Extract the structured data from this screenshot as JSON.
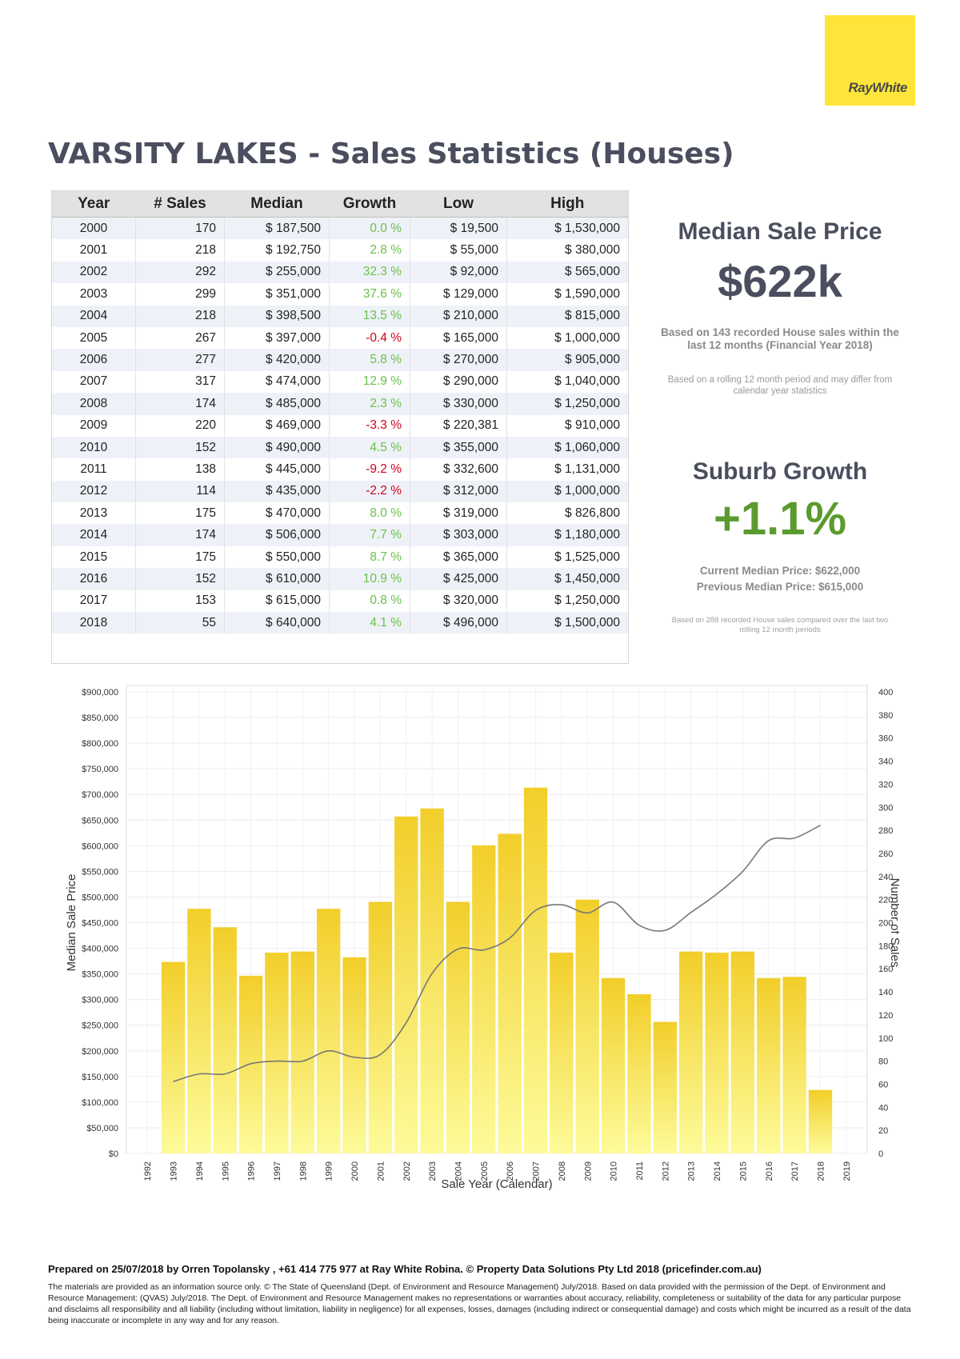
{
  "brand": {
    "name": "RayWhite",
    "color": "#ffe539"
  },
  "title": "VARSITY LAKES - Sales Statistics (Houses)",
  "table": {
    "headers": [
      "Year",
      "# Sales",
      "Median",
      "Growth",
      "Low",
      "High"
    ],
    "rows": [
      [
        "2000",
        "170",
        "$ 187,500",
        "0.0 %",
        "$ 19,500",
        "$ 1,530,000"
      ],
      [
        "2001",
        "218",
        "$ 192,750",
        "2.8 %",
        "$ 55,000",
        "$ 380,000"
      ],
      [
        "2002",
        "292",
        "$ 255,000",
        "32.3 %",
        "$ 92,000",
        "$ 565,000"
      ],
      [
        "2003",
        "299",
        "$ 351,000",
        "37.6 %",
        "$ 129,000",
        "$ 1,590,000"
      ],
      [
        "2004",
        "218",
        "$ 398,500",
        "13.5 %",
        "$ 210,000",
        "$ 815,000"
      ],
      [
        "2005",
        "267",
        "$ 397,000",
        "-0.4 %",
        "$ 165,000",
        "$ 1,000,000"
      ],
      [
        "2006",
        "277",
        "$ 420,000",
        "5.8 %",
        "$ 270,000",
        "$ 905,000"
      ],
      [
        "2007",
        "317",
        "$ 474,000",
        "12.9 %",
        "$ 290,000",
        "$ 1,040,000"
      ],
      [
        "2008",
        "174",
        "$ 485,000",
        "2.3 %",
        "$ 330,000",
        "$ 1,250,000"
      ],
      [
        "2009",
        "220",
        "$ 469,000",
        "-3.3 %",
        "$ 220,381",
        "$ 910,000"
      ],
      [
        "2010",
        "152",
        "$ 490,000",
        "4.5 %",
        "$ 355,000",
        "$ 1,060,000"
      ],
      [
        "2011",
        "138",
        "$ 445,000",
        "-9.2 %",
        "$ 332,600",
        "$ 1,131,000"
      ],
      [
        "2012",
        "114",
        "$ 435,000",
        "-2.2 %",
        "$ 312,000",
        "$ 1,000,000"
      ],
      [
        "2013",
        "175",
        "$ 470,000",
        "8.0 %",
        "$ 319,000",
        "$ 826,800"
      ],
      [
        "2014",
        "174",
        "$ 506,000",
        "7.7 %",
        "$ 303,000",
        "$ 1,180,000"
      ],
      [
        "2015",
        "175",
        "$ 550,000",
        "8.7 %",
        "$ 365,000",
        "$ 1,525,000"
      ],
      [
        "2016",
        "152",
        "$ 610,000",
        "10.9 %",
        "$ 425,000",
        "$ 1,450,000"
      ],
      [
        "2017",
        "153",
        "$ 615,000",
        "0.8 %",
        "$ 320,000",
        "$ 1,250,000"
      ],
      [
        "2018",
        "55",
        "$ 640,000",
        "4.1 %",
        "$ 496,000",
        "$ 1,500,000"
      ]
    ]
  },
  "median_panel": {
    "heading": "Median Sale Price",
    "value": "$622k",
    "note1": "Based on 143 recorded House sales within the last 12 months (Financial Year 2018)",
    "note2": "Based on a rolling 12 month period and may differ from calendar year statistics"
  },
  "growth_panel": {
    "heading": "Suburb Growth",
    "value": "+1.1%",
    "current": "Current Median Price: $622,000",
    "previous": "Previous Median Price: $615,000",
    "note": "Based on 288 recorded House sales compared over the last two rolling 12 month periods"
  },
  "chart_data": {
    "type": "bar",
    "xlabel": "Sale Year (Calendar)",
    "ylabel": "Median Sale Price",
    "y2label": "Number of Sales",
    "ylim": [
      0,
      900000
    ],
    "y2lim": [
      0,
      400
    ],
    "y_ticks": [
      "$0",
      "$50,000",
      "$100,000",
      "$150,000",
      "$200,000",
      "$250,000",
      "$300,000",
      "$350,000",
      "$400,000",
      "$450,000",
      "$500,000",
      "$550,000",
      "$600,000",
      "$650,000",
      "$700,000",
      "$750,000",
      "$800,000",
      "$850,000",
      "$900,000"
    ],
    "y2_ticks": [
      "0",
      "20",
      "40",
      "60",
      "80",
      "100",
      "120",
      "140",
      "160",
      "180",
      "200",
      "220",
      "240",
      "260",
      "280",
      "300",
      "320",
      "340",
      "360",
      "380",
      "400"
    ],
    "x_ticks": [
      "1992",
      "1993",
      "1994",
      "1995",
      "1996",
      "1997",
      "1998",
      "1999",
      "2000",
      "2001",
      "2002",
      "2003",
      "2004",
      "2005",
      "2006",
      "2007",
      "2008",
      "2009",
      "2010",
      "2011",
      "2012",
      "2013",
      "2014",
      "2015",
      "2016",
      "2017",
      "2018",
      "2019"
    ],
    "series": [
      {
        "kind": "bar",
        "x": [
          1993,
          1994,
          1995,
          1996,
          1997,
          1998,
          1999,
          2000,
          2001,
          2002,
          2003,
          2004,
          2005,
          2006,
          2007,
          2008,
          2009,
          2010,
          2011,
          2012,
          2013,
          2014,
          2015,
          2016,
          2017,
          2018
        ],
        "values": [
          166,
          212,
          196,
          154,
          174,
          175,
          212,
          170,
          218,
          292,
          299,
          218,
          267,
          277,
          317,
          174,
          220,
          152,
          138,
          114,
          175,
          174,
          175,
          152,
          153,
          55
        ]
      },
      {
        "kind": "line",
        "x": [
          1993,
          1994,
          1995,
          1996,
          1997,
          1998,
          1999,
          2000,
          2001,
          2002,
          2003,
          2004,
          2005,
          2006,
          2007,
          2008,
          2009,
          2010,
          2011,
          2012,
          2013,
          2014,
          2015,
          2016,
          2017,
          2018
        ],
        "values": [
          140000,
          155000,
          155000,
          175000,
          180000,
          180000,
          200000,
          187500,
          192750,
          255000,
          351000,
          398500,
          397000,
          420000,
          474000,
          485000,
          469000,
          490000,
          445000,
          435000,
          470000,
          506000,
          550000,
          610000,
          615000,
          640000
        ]
      }
    ],
    "colors": {
      "bar_top": "#f2ce2a",
      "bar_bottom": "#fdfb9a",
      "line": "#777777"
    },
    "grid": true
  },
  "footer": {
    "prepared": "Prepared on 25/07/2018 by Orren Topolansky , +61 414 775 977 at Ray White Robina. © Property Data Solutions Pty Ltd 2018 (pricefinder.com.au)",
    "disclaimer": "The materials are provided as an information source only. © The State of Queensland (Dept. of Environment and Resource Management) July/2018. Based on data provided with the permission of the Dept. of Environment and Resource Management: (QVAS) July/2018. The Dept. of Environment and Resource Management makes no representations or warranties about accuracy, reliability, completeness or suitability of the data for any particular purpose and disclaims all responsibility and all liability (including without limitation, liability in negligence) for all expenses, losses, damages (including indirect or consequential damage) and costs which might be incurred as a result of the data being inaccurate or incomplete in any way and for any reason."
  }
}
